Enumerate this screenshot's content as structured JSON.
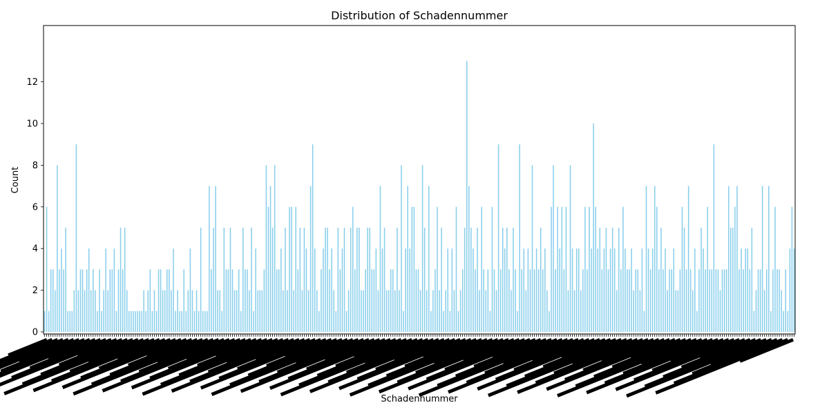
{
  "chart_data": {
    "type": "bar",
    "title": "Distribution of Schadennummer",
    "xlabel": "Schadennummer",
    "ylabel": "Count",
    "ylim": [
      0,
      13.6
    ],
    "yticks": [
      0,
      2,
      4,
      6,
      8,
      10,
      12
    ],
    "bar_color": "#87ceeb",
    "grid": false,
    "legend": "none",
    "values": [
      1,
      6,
      1,
      3,
      3,
      2,
      8,
      3,
      4,
      3,
      5,
      1,
      1,
      1,
      2,
      9,
      2,
      3,
      3,
      2,
      3,
      4,
      2,
      3,
      2,
      1,
      3,
      1,
      2,
      4,
      2,
      3,
      3,
      4,
      1,
      3,
      5,
      3,
      5,
      2,
      1,
      1,
      1,
      1,
      1,
      1,
      1,
      2,
      1,
      2,
      3,
      1,
      2,
      1,
      3,
      3,
      2,
      2,
      3,
      3,
      2,
      4,
      1,
      2,
      1,
      1,
      3,
      1,
      2,
      4,
      2,
      1,
      2,
      1,
      5,
      1,
      1,
      1,
      7,
      3,
      5,
      7,
      2,
      2,
      1,
      5,
      3,
      3,
      5,
      3,
      2,
      2,
      3,
      1,
      5,
      3,
      3,
      2,
      5,
      1,
      4,
      2,
      2,
      2,
      3,
      8,
      6,
      7,
      5,
      8,
      3,
      3,
      4,
      2,
      5,
      2,
      6,
      6,
      2,
      6,
      3,
      5,
      2,
      5,
      4,
      2,
      7,
      9,
      4,
      2,
      1,
      3,
      4,
      5,
      5,
      3,
      4,
      2,
      1,
      5,
      3,
      4,
      5,
      1,
      2,
      5,
      6,
      3,
      5,
      5,
      2,
      2,
      3,
      5,
      5,
      3,
      3,
      4,
      2,
      7,
      4,
      5,
      2,
      2,
      3,
      3,
      2,
      5,
      2,
      8,
      1,
      4,
      7,
      4,
      6,
      6,
      3,
      3,
      2,
      8,
      5,
      2,
      7,
      1,
      2,
      3,
      6,
      2,
      5,
      1,
      2,
      4,
      1,
      4,
      2,
      6,
      1,
      2,
      3,
      5,
      13,
      7,
      5,
      4,
      3,
      5,
      2,
      6,
      3,
      2,
      3,
      1,
      6,
      3,
      2,
      9,
      3,
      5,
      4,
      5,
      3,
      2,
      5,
      3,
      1,
      9,
      3,
      4,
      2,
      4,
      3,
      8,
      3,
      4,
      3,
      5,
      3,
      4,
      2,
      1,
      6,
      8,
      3,
      6,
      4,
      6,
      3,
      6,
      2,
      8,
      4,
      2,
      4,
      4,
      2,
      3,
      6,
      3,
      6,
      4,
      10,
      6,
      4,
      5,
      3,
      4,
      5,
      3,
      4,
      5,
      4,
      2,
      5,
      3,
      6,
      4,
      3,
      3,
      4,
      2,
      3,
      3,
      2,
      4,
      1,
      7,
      4,
      3,
      4,
      7,
      6,
      3,
      5,
      3,
      4,
      2,
      3,
      3,
      4,
      2,
      2,
      3,
      6,
      5,
      3,
      7,
      3,
      2,
      4,
      1,
      3,
      5,
      4,
      3,
      6,
      3,
      3,
      9,
      3,
      3,
      2,
      3,
      3,
      3,
      7,
      5,
      5,
      6,
      7,
      3,
      4,
      3,
      4,
      4,
      3,
      5,
      1,
      2,
      3,
      3,
      7,
      2,
      3,
      7,
      1,
      3,
      6,
      3,
      3,
      2,
      1,
      3,
      1,
      4,
      6,
      4
    ]
  }
}
